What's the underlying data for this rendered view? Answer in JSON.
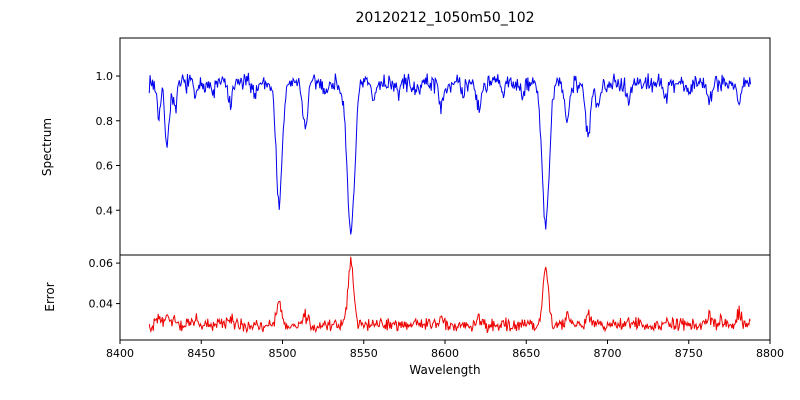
{
  "chart_data": {
    "type": "line",
    "title": "20120212_1050m50_102",
    "xlabel": "Wavelength",
    "xlim": [
      8400,
      8800
    ],
    "x_ticks": [
      8400,
      8450,
      8500,
      8550,
      8600,
      8650,
      8700,
      8750,
      8800
    ],
    "x_tick_labels": [
      "8400",
      "8450",
      "8500",
      "8550",
      "8600",
      "8650",
      "8700",
      "8750",
      "8800"
    ],
    "x_range": [
      8418,
      8788
    ],
    "sample_step": 0.5,
    "seed": 7,
    "grid": false,
    "legend": "none",
    "panels": [
      {
        "name": "spectrum",
        "ylabel": "Spectrum",
        "color": "#0000ee",
        "ylim": [
          0.2,
          1.17
        ],
        "y_ticks": [
          0.4,
          0.6,
          0.8,
          1.0
        ],
        "y_tick_labels": [
          "0.4",
          "0.6",
          "0.8",
          "1.0"
        ],
        "continuum": 0.97,
        "noise_amp": 0.05,
        "absorption_features": [
          [
            8424,
            0.14,
            1.2
          ],
          [
            8429,
            0.28,
            1.3
          ],
          [
            8434,
            0.13,
            1.2
          ],
          [
            8447,
            0.07,
            1.2
          ],
          [
            8457,
            0.05,
            1.2
          ],
          [
            8468,
            0.1,
            1.4
          ],
          [
            8483,
            0.05,
            1.2
          ],
          [
            8498,
            0.54,
            1.9
          ],
          [
            8514,
            0.2,
            1.5
          ],
          [
            8527,
            0.05,
            1.2
          ],
          [
            8542,
            0.66,
            2.4
          ],
          [
            8556,
            0.08,
            1.3
          ],
          [
            8571,
            0.05,
            1.2
          ],
          [
            8582,
            0.06,
            1.2
          ],
          [
            8598,
            0.11,
            1.4
          ],
          [
            8611,
            0.06,
            1.2
          ],
          [
            8621,
            0.12,
            1.4
          ],
          [
            8636,
            0.05,
            1.2
          ],
          [
            8648,
            0.07,
            1.2
          ],
          [
            8662,
            0.64,
            2.2
          ],
          [
            8675,
            0.17,
            1.4
          ],
          [
            8688,
            0.24,
            1.6
          ],
          [
            8694,
            0.13,
            1.3
          ],
          [
            8713,
            0.08,
            1.2
          ],
          [
            8736,
            0.08,
            1.2
          ],
          [
            8750,
            0.05,
            1.1
          ],
          [
            8763,
            0.07,
            1.2
          ],
          [
            8781,
            0.1,
            1.2
          ]
        ]
      },
      {
        "name": "error",
        "ylabel": "Error",
        "color": "#ee0000",
        "ylim": [
          0.022,
          0.064
        ],
        "y_ticks": [
          0.04,
          0.06
        ],
        "y_tick_labels": [
          "0.04",
          "0.06"
        ],
        "baseline": 0.0295,
        "noise_amp": 0.004,
        "emission_features": [
          [
            8424,
            0.003,
            1.2
          ],
          [
            8429,
            0.005,
            1.3
          ],
          [
            8434,
            0.003,
            1.2
          ],
          [
            8447,
            0.002,
            1.2
          ],
          [
            8468,
            0.003,
            1.4
          ],
          [
            8498,
            0.011,
            1.6
          ],
          [
            8514,
            0.004,
            1.4
          ],
          [
            8542,
            0.031,
            1.7
          ],
          [
            8556,
            0.002,
            1.2
          ],
          [
            8598,
            0.002,
            1.2
          ],
          [
            8621,
            0.003,
            1.3
          ],
          [
            8648,
            0.002,
            1.2
          ],
          [
            8662,
            0.029,
            1.6
          ],
          [
            8675,
            0.004,
            1.3
          ],
          [
            8688,
            0.005,
            1.4
          ],
          [
            8694,
            0.003,
            1.2
          ],
          [
            8713,
            0.002,
            1.2
          ],
          [
            8736,
            0.003,
            1.2
          ],
          [
            8750,
            0.002,
            1.1
          ],
          [
            8763,
            0.004,
            1.2
          ],
          [
            8770,
            0.003,
            1.1
          ],
          [
            8781,
            0.006,
            1.2
          ]
        ]
      }
    ]
  }
}
